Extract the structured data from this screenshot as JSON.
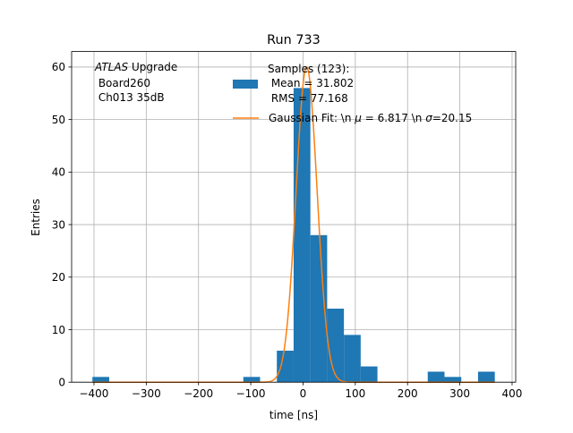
{
  "chart_data": {
    "type": "bar",
    "title": "Run 733",
    "xlabel": "time [ns]",
    "ylabel": "Entries",
    "xlim": [
      -442.8,
      406.9
    ],
    "ylim": [
      0,
      62.95
    ],
    "grid": true,
    "x_ticks": [
      -400,
      -300,
      -200,
      -100,
      0,
      100,
      200,
      300,
      400
    ],
    "y_ticks": [
      0,
      10,
      20,
      30,
      40,
      50,
      60
    ],
    "bin_start": -403,
    "bin_width": 32.08,
    "counts": [
      1,
      0,
      0,
      0,
      0,
      0,
      0,
      0,
      0,
      1,
      0,
      6,
      56,
      28,
      14,
      9,
      3,
      0,
      0,
      0,
      2,
      1,
      0,
      2
    ],
    "bar_color": "#1f77b4",
    "fit": {
      "type": "gaussian",
      "mu": 6.817,
      "sigma": 20.15,
      "amplitude": 60,
      "range": [
        -403,
        367
      ],
      "color": "#ff7f0e"
    },
    "annotation": {
      "italic": "ATLAS",
      "rest": " Upgrade",
      "line2": " Board260",
      "line3": " Ch013 35dB"
    },
    "legend": {
      "placement": "top-center",
      "hist_lines": [
        "Samples (123):",
        " Mean = 31.802",
        " RMS = 77.168"
      ],
      "fit_parts": [
        "Gaussian Fit: \\n ",
        "μ",
        " = 6.817 \\n ",
        "σ",
        "=20.15"
      ]
    }
  }
}
